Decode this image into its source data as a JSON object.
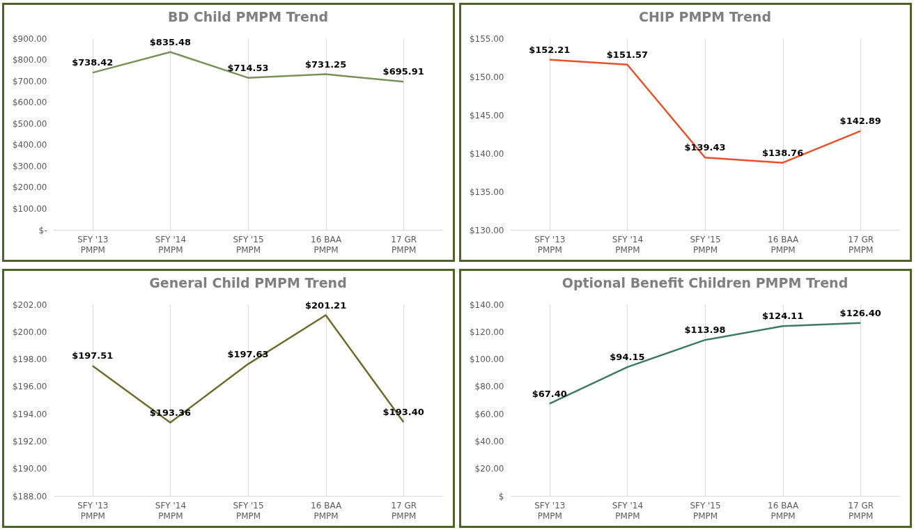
{
  "chart_data": [
    {
      "type": "line",
      "title": "BD Child PMPM Trend",
      "categories": [
        "SFY '13 PMPM",
        "SFY '14 PMPM",
        "SFY '15 PMPM",
        "16 BAA PMPM",
        "17 GR PMPM"
      ],
      "series": [
        {
          "color": "#77925a",
          "values": [
            738.42,
            835.48,
            714.53,
            731.25,
            695.91
          ],
          "value_labels": [
            "$738.42",
            "$835.48",
            "$714.53",
            "$731.25",
            "$695.91"
          ]
        }
      ],
      "ylim": [
        0,
        900
      ],
      "yticks": [
        {
          "value": 0,
          "label": "$-"
        },
        {
          "value": 100,
          "label": "$100.00"
        },
        {
          "value": 200,
          "label": "$200.00"
        },
        {
          "value": 300,
          "label": "$300.00"
        },
        {
          "value": 400,
          "label": "$400.00"
        },
        {
          "value": 500,
          "label": "$500.00"
        },
        {
          "value": 600,
          "label": "$600.00"
        },
        {
          "value": 700,
          "label": "$700.00"
        },
        {
          "value": 800,
          "label": "$800.00"
        },
        {
          "value": 900,
          "label": "$900.00"
        }
      ],
      "grid": "x"
    },
    {
      "type": "line",
      "title": "CHIP PMPM Trend",
      "categories": [
        "SFY '13 PMPM",
        "SFY '14 PMPM",
        "SFY '15 PMPM",
        "16 BAA PMPM",
        "17 GR PMPM"
      ],
      "series": [
        {
          "color": "#e8502a",
          "values": [
            152.21,
            151.57,
            139.43,
            138.76,
            142.89
          ],
          "value_labels": [
            "$152.21",
            "$151.57",
            "$139.43",
            "$138.76",
            "$142.89"
          ]
        }
      ],
      "ylim": [
        130,
        155
      ],
      "yticks": [
        {
          "value": 130,
          "label": "$130.00"
        },
        {
          "value": 135,
          "label": "$135.00"
        },
        {
          "value": 140,
          "label": "$140.00"
        },
        {
          "value": 145,
          "label": "$145.00"
        },
        {
          "value": 150,
          "label": "$150.00"
        },
        {
          "value": 155,
          "label": "$155.00"
        }
      ],
      "grid": "x"
    },
    {
      "type": "line",
      "title": "General Child PMPM Trend",
      "categories": [
        "SFY '13 PMPM",
        "SFY '14 PMPM",
        "SFY '15 PMPM",
        "16 BAA PMPM",
        "17 GR PMPM"
      ],
      "series": [
        {
          "color": "#6b6b2e",
          "values": [
            197.51,
            193.36,
            197.63,
            201.21,
            193.4
          ],
          "value_labels": [
            "$197.51",
            "$193.36",
            "$197.63",
            "$201.21",
            "$193.40"
          ]
        }
      ],
      "ylim": [
        188,
        202
      ],
      "yticks": [
        {
          "value": 188,
          "label": "$188.00"
        },
        {
          "value": 190,
          "label": "$190.00"
        },
        {
          "value": 192,
          "label": "$192.00"
        },
        {
          "value": 194,
          "label": "$194.00"
        },
        {
          "value": 196,
          "label": "$196.00"
        },
        {
          "value": 198,
          "label": "$198.00"
        },
        {
          "value": 200,
          "label": "$200.00"
        },
        {
          "value": 202,
          "label": "$202.00"
        }
      ],
      "grid": "x"
    },
    {
      "type": "line",
      "title": "Optional Benefit Children PMPM Trend",
      "categories": [
        "SFY '13 PMPM",
        "SFY '14 PMPM",
        "SFY '15 PMPM",
        "16 BAA PMPM",
        "17 GR PMPM"
      ],
      "series": [
        {
          "color": "#3e7a63",
          "values": [
            67.4,
            94.15,
            113.98,
            124.11,
            126.4
          ],
          "value_labels": [
            "$67.40",
            "$94.15",
            "$113.98",
            "$124.11",
            "$126.40"
          ]
        }
      ],
      "ylim": [
        0,
        140
      ],
      "yticks": [
        {
          "value": 0,
          "label": "$"
        },
        {
          "value": 20,
          "label": "$20.00"
        },
        {
          "value": 40,
          "label": "$40.00"
        },
        {
          "value": 60,
          "label": "$60.00"
        },
        {
          "value": 80,
          "label": "$80.00"
        },
        {
          "value": 100,
          "label": "$100.00"
        },
        {
          "value": 120,
          "label": "$120.00"
        },
        {
          "value": 140,
          "label": "$140.00"
        }
      ],
      "grid": "x"
    }
  ]
}
